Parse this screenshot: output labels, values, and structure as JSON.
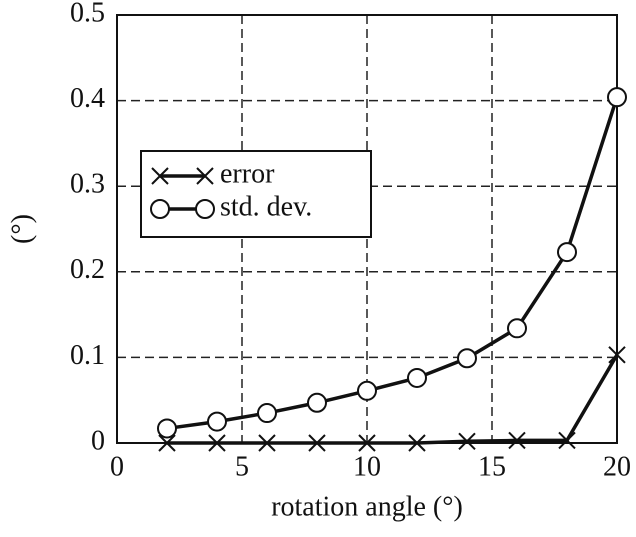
{
  "chart_data": {
    "type": "line",
    "x": [
      2,
      4,
      6,
      8,
      10,
      12,
      14,
      16,
      18,
      20
    ],
    "series": [
      {
        "name": "error",
        "color": "#111111",
        "marker": "x",
        "values": [
          0,
          0,
          0,
          0,
          0,
          0,
          0.002,
          0.003,
          0.003,
          0.103
        ]
      },
      {
        "name": "std. dev.",
        "color": "#111111",
        "marker": "o",
        "values": [
          0.017,
          0.025,
          0.035,
          0.047,
          0.061,
          0.076,
          0.099,
          0.134,
          0.223,
          0.404
        ]
      }
    ],
    "xlabel": "rotation angle (°)",
    "ylabel": "(°)",
    "xlim": [
      0,
      20
    ],
    "xticks": [
      0,
      5,
      10,
      15,
      20
    ],
    "ylim": [
      0,
      0.5
    ],
    "yticks": [
      0,
      0.1,
      0.2,
      0.3,
      0.4,
      0.5
    ],
    "grid": true,
    "legend": "upper left"
  }
}
